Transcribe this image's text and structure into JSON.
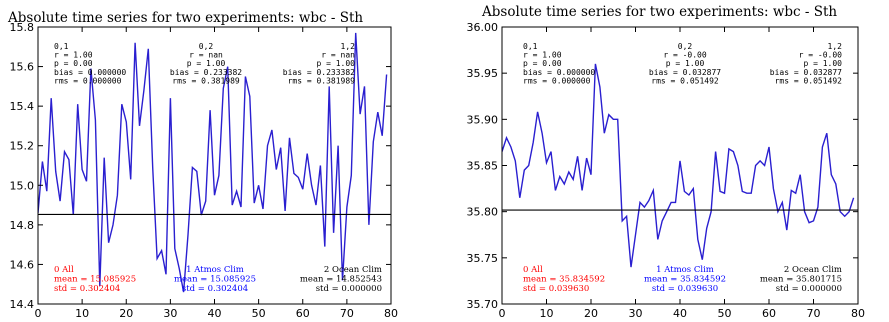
{
  "chart_data": [
    {
      "type": "line",
      "title": "Absolute time series for two experiments: wbc - Sth",
      "xlabel": "",
      "ylabel": "",
      "xlim": [
        0,
        80
      ],
      "ylim": [
        14.4,
        15.8
      ],
      "x_ticks": [
        "0",
        "10",
        "20",
        "30",
        "40",
        "50",
        "60",
        "70",
        "80"
      ],
      "y_ticks": [
        "14.4",
        "14.6",
        "14.8",
        "15.0",
        "15.2",
        "15.4",
        "15.6",
        "15.8"
      ],
      "grid": false,
      "hline": 14.852543,
      "series": [
        {
          "color": "#2a1fd0",
          "x": [
            0,
            1,
            2,
            3,
            4,
            5,
            6,
            7,
            8,
            9,
            10,
            11,
            12,
            13,
            14,
            15,
            16,
            17,
            18,
            19,
            20,
            21,
            22,
            23,
            24,
            25,
            26,
            27,
            28,
            29,
            30,
            31,
            32,
            33,
            34,
            35,
            36,
            37,
            38,
            39,
            40,
            41,
            42,
            43,
            44,
            45,
            46,
            47,
            48,
            49,
            50,
            51,
            52,
            53,
            54,
            55,
            56,
            57,
            58,
            59,
            60,
            61,
            62,
            63,
            64,
            65,
            66,
            67,
            68,
            69,
            70,
            71,
            72,
            73,
            74,
            75,
            76,
            77,
            78,
            79
          ],
          "values": [
            14.86,
            15.12,
            14.97,
            15.44,
            15.07,
            14.92,
            15.17,
            15.13,
            14.85,
            15.41,
            15.08,
            15.02,
            15.59,
            15.33,
            14.49,
            15.14,
            14.71,
            14.8,
            14.95,
            15.41,
            15.32,
            15.03,
            15.72,
            15.3,
            15.48,
            15.69,
            15.09,
            14.63,
            14.67,
            14.55,
            15.44,
            14.68,
            14.58,
            14.46,
            14.75,
            15.09,
            15.07,
            14.85,
            14.92,
            15.38,
            14.95,
            15.05,
            15.49,
            15.6,
            14.9,
            14.97,
            14.89,
            15.55,
            15.45,
            14.91,
            15.0,
            14.88,
            15.2,
            15.28,
            15.08,
            15.19,
            14.87,
            15.24,
            15.06,
            15.04,
            14.98,
            15.16,
            15.0,
            14.9,
            15.1,
            14.69,
            15.5,
            14.76,
            15.2,
            14.52,
            14.89,
            15.05,
            15.77,
            15.36,
            15.5,
            14.8,
            15.22,
            15.37,
            15.25,
            15.56
          ]
        }
      ],
      "stats": [
        {
          "id": "0,1",
          "r": "r  =  1.00",
          "p": "p  = 0.00",
          "bias": "bias = 0.000000",
          "rms": "rms  = 0.000000"
        },
        {
          "id": "0,2",
          "r": "r  =  nan",
          "p": "p = 1.00",
          "bias": "bias = 0.233382",
          "rms": "rms = 0.381989"
        },
        {
          "id": "1,2",
          "r": "r  =  nan",
          "p": "p = 1.00",
          "bias": "bias = 0.233382",
          "rms": "rms = 0.381989"
        }
      ],
      "legend": [
        {
          "label": "0 All",
          "mean": "mean = 15.085925",
          "std": "std = 0.302404",
          "color": "#ff0000"
        },
        {
          "label": "1 Atmos Clim",
          "mean": "mean = 15.085925",
          "std": "std = 0.302404",
          "color": "#0000ff"
        },
        {
          "label": "2 Ocean Clim",
          "mean": "mean = 14.852543",
          "std": "std = 0.000000",
          "color": "#000000"
        }
      ]
    },
    {
      "type": "line",
      "title": "Absolute time series for two experiments: wbc - Sth",
      "xlabel": "",
      "ylabel": "",
      "xlim": [
        0,
        80
      ],
      "ylim": [
        35.7,
        36.0
      ],
      "x_ticks": [
        "0",
        "10",
        "20",
        "30",
        "40",
        "50",
        "60",
        "70",
        "80"
      ],
      "y_ticks": [
        "35.70",
        "35.75",
        "35.80",
        "35.85",
        "35.90",
        "35.95",
        "36.00"
      ],
      "grid": false,
      "hline": 35.801715,
      "series": [
        {
          "color": "#2a1fd0",
          "x": [
            0,
            1,
            2,
            3,
            4,
            5,
            6,
            7,
            8,
            9,
            10,
            11,
            12,
            13,
            14,
            15,
            16,
            17,
            18,
            19,
            20,
            21,
            22,
            23,
            24,
            25,
            26,
            27,
            28,
            29,
            30,
            31,
            32,
            33,
            34,
            35,
            36,
            37,
            38,
            39,
            40,
            41,
            42,
            43,
            44,
            45,
            46,
            47,
            48,
            49,
            50,
            51,
            52,
            53,
            54,
            55,
            56,
            57,
            58,
            59,
            60,
            61,
            62,
            63,
            64,
            65,
            66,
            67,
            68,
            69,
            70,
            71,
            72,
            73,
            74,
            75,
            76,
            77,
            78,
            79
          ],
          "values": [
            35.865,
            35.88,
            35.87,
            35.855,
            35.815,
            35.845,
            35.85,
            35.875,
            35.908,
            35.885,
            35.853,
            35.865,
            35.823,
            35.838,
            35.83,
            35.843,
            35.835,
            35.86,
            35.823,
            35.858,
            35.84,
            35.96,
            35.935,
            35.885,
            35.905,
            35.9,
            35.9,
            35.79,
            35.795,
            35.74,
            35.775,
            35.81,
            35.805,
            35.812,
            35.823,
            35.77,
            35.79,
            35.8,
            35.81,
            35.81,
            35.855,
            35.822,
            35.818,
            35.825,
            35.77,
            35.748,
            35.782,
            35.8,
            35.865,
            35.822,
            35.82,
            35.868,
            35.865,
            35.85,
            35.822,
            35.82,
            35.82,
            35.85,
            35.855,
            35.85,
            35.87,
            35.825,
            35.8,
            35.81,
            35.78,
            35.823,
            35.82,
            35.84,
            35.8,
            35.788,
            35.79,
            35.805,
            35.87,
            35.885,
            35.84,
            35.83,
            35.8,
            35.795,
            35.8,
            35.815
          ]
        }
      ],
      "stats": [
        {
          "id": "0,1",
          "r": "r  =  1.00",
          "p": "p  = 0.00",
          "bias": "bias = 0.000000",
          "rms": "rms  = 0.000000"
        },
        {
          "id": "0,2",
          "r": "r = -0.00",
          "p": "p = 1.00",
          "bias": "bias = 0.032877",
          "rms": "rms = 0.051492"
        },
        {
          "id": "1,2",
          "r": "r = -0.00",
          "p": "p = 1.00",
          "bias": "bias = 0.032877",
          "rms": "rms = 0.051492"
        }
      ],
      "legend": [
        {
          "label": "0 All",
          "mean": "mean = 35.834592",
          "std": "std = 0.039630",
          "color": "#ff0000"
        },
        {
          "label": "1 Atmos Clim",
          "mean": "mean = 35.834592",
          "std": "std = 0.039630",
          "color": "#0000ff"
        },
        {
          "label": "2 Ocean Clim",
          "mean": "mean = 35.801715",
          "std": "std = 0.000000",
          "color": "#000000"
        }
      ]
    }
  ]
}
